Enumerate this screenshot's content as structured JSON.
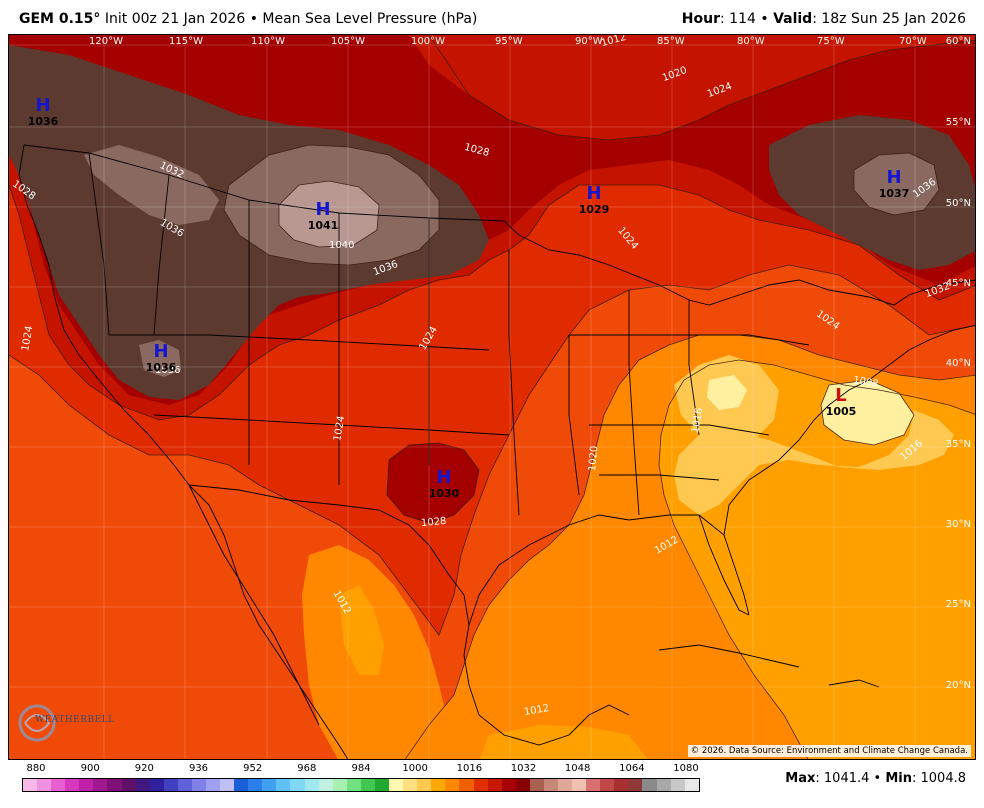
{
  "header": {
    "model": "GEM 0.15",
    "degree": "°",
    "init": "Init 00z 21 Jan 2026",
    "bullet": "•",
    "field": "Mean Sea Level Pressure (hPa)",
    "hour_label": "Hour",
    "hour_value": ": 114",
    "valid_label": "Valid",
    "valid_value": ": 18z Sun 25 Jan 2026"
  },
  "footer": {
    "credit": "© 2026. Data Source: Environment and Climate Change Canada.",
    "max_label": "Max",
    "max_value": ": 1041.4",
    "min_label": "Min",
    "min_value": ": 1004.8"
  },
  "logo": {
    "text": "WEATHERBELL"
  },
  "colorbar": {
    "ticks": [
      "880",
      "900",
      "920",
      "936",
      "952",
      "968",
      "984",
      "1000",
      "1016",
      "1032",
      "1048",
      "1064",
      "1080"
    ],
    "colors": [
      "#f8b8e8",
      "#f090e0",
      "#e860d0",
      "#d838c0",
      "#c020a8",
      "#a01890",
      "#801078",
      "#601068",
      "#401880",
      "#3020a0",
      "#4040c0",
      "#6060d8",
      "#8080e8",
      "#a0a0f0",
      "#c0c0f8",
      "#1a5fd8",
      "#2a80e8",
      "#40a0f0",
      "#60c0f8",
      "#80d8f8",
      "#a0e8f0",
      "#c0f0e0",
      "#a8f0b0",
      "#70e080",
      "#40c850",
      "#20a830",
      "#fff8b0",
      "#ffe080",
      "#ffc850",
      "#ffa800",
      "#ff8800",
      "#f06000",
      "#e03000",
      "#c81800",
      "#a80000",
      "#880000",
      "#a86050",
      "#c88878",
      "#e0a898",
      "#f0c0b0",
      "#d87070",
      "#c04848",
      "#a83030",
      "#903838",
      "#8a8a8a",
      "#a8a8a8",
      "#c8c8c8",
      "#e8e8e8"
    ]
  },
  "pressure_systems": [
    {
      "letter": "H",
      "value": "1036",
      "color": "#1515d0"
    },
    {
      "letter": "H",
      "value": "1041",
      "color": "#1515d0"
    },
    {
      "letter": "H",
      "value": "1029",
      "color": "#1515d0"
    },
    {
      "letter": "H",
      "value": "1037",
      "color": "#1515d0"
    },
    {
      "letter": "H",
      "value": "1036",
      "color": "#1515d0"
    },
    {
      "letter": "H",
      "value": "1030",
      "color": "#1515d0"
    },
    {
      "letter": "L",
      "value": "1005",
      "color": "#d01010"
    }
  ],
  "isobar_labels": [
    "1032",
    "1036",
    "1040",
    "1036",
    "1028",
    "1028",
    "1024",
    "1024",
    "1020",
    "1016",
    "1012",
    "1012",
    "1012",
    "1008",
    "1024",
    "1024",
    "1024",
    "1020",
    "1016",
    "1036",
    "1032",
    "1024",
    "1028",
    "1036",
    "1012"
  ],
  "lon_labels": [
    "120°W",
    "115°W",
    "110°W",
    "105°W",
    "100°W",
    "95°W",
    "90°W",
    "85°W",
    "80°W",
    "75°W",
    "70°W"
  ],
  "lat_labels": [
    "60°N",
    "55°N",
    "50°N",
    "45°N",
    "40°N",
    "35°N",
    "30°N",
    "25°N",
    "20°N"
  ]
}
